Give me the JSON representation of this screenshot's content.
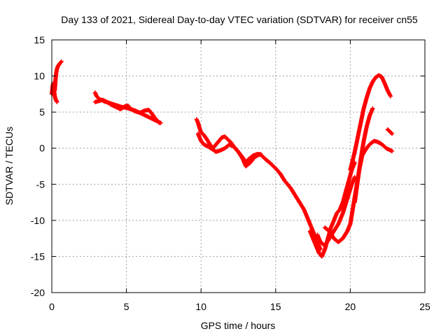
{
  "chart_data": {
    "type": "scatter",
    "title": "Day 133 of 2021, Sidereal Day-to-day VTEC variation (SDTVAR) for receiver cn55",
    "xlabel": "GPS time / hours",
    "ylabel": "SDTVAR / TECUs",
    "xlim": [
      0,
      25
    ],
    "ylim": [
      -20,
      15
    ],
    "xticks": [
      0,
      5,
      10,
      15,
      20,
      25
    ],
    "yticks": [
      -20,
      -15,
      -10,
      -5,
      0,
      5,
      10,
      15
    ],
    "grid": true,
    "marker": "+",
    "color": "#ff0000",
    "series": [
      {
        "name": "arc1",
        "x": [
          0.0,
          0.05,
          0.1,
          0.15,
          0.2,
          0.25,
          0.3,
          0.35
        ],
        "y": [
          7.5,
          8.5,
          9.0,
          8.0,
          7.2,
          6.8,
          6.6,
          6.4
        ]
      },
      {
        "name": "arc2",
        "x": [
          0.2,
          0.25,
          0.3,
          0.35,
          0.4,
          0.45,
          0.5,
          0.55,
          0.6,
          0.65
        ],
        "y": [
          8.0,
          9.5,
          10.5,
          11.0,
          11.3,
          11.5,
          11.6,
          11.8,
          11.9,
          12.0
        ]
      },
      {
        "name": "arc3",
        "x": [
          2.9,
          3.0,
          3.2,
          3.5,
          3.8,
          4.1,
          4.4,
          4.7,
          5.0,
          5.3,
          5.6,
          5.9,
          6.2,
          6.5,
          6.8,
          7.1,
          7.3
        ],
        "y": [
          7.7,
          7.2,
          6.8,
          6.5,
          6.3,
          6.1,
          5.9,
          5.7,
          5.6,
          5.4,
          5.2,
          4.9,
          4.6,
          4.3,
          4.0,
          3.7,
          3.5
        ]
      },
      {
        "name": "arc4",
        "x": [
          2.9,
          3.1,
          3.4,
          3.7,
          4.0,
          4.3,
          4.6,
          4.9,
          5.1,
          5.3,
          5.6,
          5.9,
          6.2,
          6.5,
          6.7,
          6.9,
          7.2
        ],
        "y": [
          6.4,
          6.5,
          6.7,
          6.4,
          6.0,
          5.7,
          5.4,
          5.8,
          5.9,
          5.4,
          5.1,
          4.9,
          5.2,
          5.3,
          4.8,
          4.2,
          3.5
        ]
      },
      {
        "name": "arc5",
        "x": [
          9.7,
          9.8,
          9.9,
          10.0,
          10.2,
          10.4,
          10.6,
          10.8,
          11.0,
          11.2,
          11.4,
          11.6,
          11.8,
          12.0,
          12.2,
          12.5,
          12.8,
          13.0,
          13.2,
          13.5,
          13.8,
          14.0,
          14.3,
          14.6,
          15.0,
          15.3,
          15.6,
          16.0,
          16.3,
          16.6,
          16.9,
          17.2,
          17.5,
          17.8,
          18.0
        ],
        "y": [
          4.0,
          3.5,
          2.8,
          2.2,
          1.8,
          1.2,
          0.5,
          0.0,
          0.5,
          1.0,
          1.5,
          1.6,
          1.2,
          0.8,
          0.2,
          -0.5,
          -1.3,
          -2.0,
          -1.5,
          -1.0,
          -0.8,
          -0.9,
          -1.5,
          -2.0,
          -2.8,
          -3.5,
          -4.5,
          -5.5,
          -6.5,
          -7.5,
          -8.5,
          -10.0,
          -11.5,
          -13.0,
          -14.0
        ]
      },
      {
        "name": "arc6",
        "x": [
          9.8,
          10.0,
          10.2,
          10.5,
          10.8,
          11.0,
          11.3,
          11.6,
          11.9,
          12.2,
          12.5,
          12.8,
          13.0,
          13.3,
          13.6,
          14.0
        ],
        "y": [
          2.0,
          1.0,
          0.5,
          0.2,
          -0.2,
          -0.5,
          -0.3,
          0.0,
          0.5,
          0.2,
          -0.5,
          -1.5,
          -2.5,
          -2.0,
          -1.2,
          -0.8
        ]
      },
      {
        "name": "arc7",
        "x": [
          17.3,
          17.5,
          17.7,
          17.9,
          18.1,
          18.3,
          18.5,
          18.7,
          18.9,
          19.1,
          19.3,
          19.5,
          19.7,
          19.9,
          20.1,
          20.3
        ],
        "y": [
          -11.5,
          -12.5,
          -13.5,
          -14.5,
          -15.0,
          -14.0,
          -12.5,
          -11.0,
          -10.0,
          -9.0,
          -8.5,
          -7.5,
          -6.0,
          -4.5,
          -3.0,
          -2.0
        ]
      },
      {
        "name": "arc8",
        "x": [
          17.8,
          18.0,
          18.3,
          18.6,
          18.9,
          19.2,
          19.5,
          19.8,
          20.1,
          20.3
        ],
        "y": [
          -12.0,
          -13.0,
          -13.5,
          -12.5,
          -11.5,
          -10.5,
          -9.0,
          -7.0,
          -5.0,
          -4.0
        ]
      },
      {
        "name": "arc9",
        "x": [
          18.3,
          18.6,
          18.9,
          19.2,
          19.5,
          19.8,
          20.0,
          20.2,
          20.4,
          20.6,
          20.8,
          21.0,
          21.2,
          21.4,
          21.6,
          21.8,
          22.0,
          22.2,
          22.4,
          22.6,
          22.8
        ],
        "y": [
          -11.0,
          -11.5,
          -12.5,
          -13.0,
          -12.5,
          -11.5,
          -10.5,
          -8.0,
          -5.5,
          -3.0,
          -1.0,
          -0.3,
          0.3,
          0.7,
          1.0,
          0.9,
          0.7,
          0.4,
          0.0,
          -0.2,
          -0.4
        ]
      },
      {
        "name": "arc10",
        "x": [
          20.0,
          20.3,
          20.6,
          20.9,
          21.1,
          21.3,
          21.5,
          21.7,
          21.9,
          22.1,
          22.3,
          22.5,
          22.7
        ],
        "y": [
          -3.0,
          -0.5,
          2.5,
          5.5,
          7.0,
          8.3,
          9.2,
          9.8,
          10.1,
          9.9,
          9.0,
          8.0,
          7.2
        ]
      },
      {
        "name": "arc11",
        "x": [
          20.3,
          20.5,
          20.7,
          20.9,
          21.1,
          21.3,
          21.5
        ],
        "y": [
          -7.5,
          -4.5,
          -1.5,
          1.0,
          3.0,
          4.5,
          5.5
        ]
      },
      {
        "name": "arc12",
        "x": [
          22.5,
          22.6,
          22.7,
          22.8
        ],
        "y": [
          2.6,
          2.4,
          2.2,
          2.0
        ]
      }
    ]
  }
}
